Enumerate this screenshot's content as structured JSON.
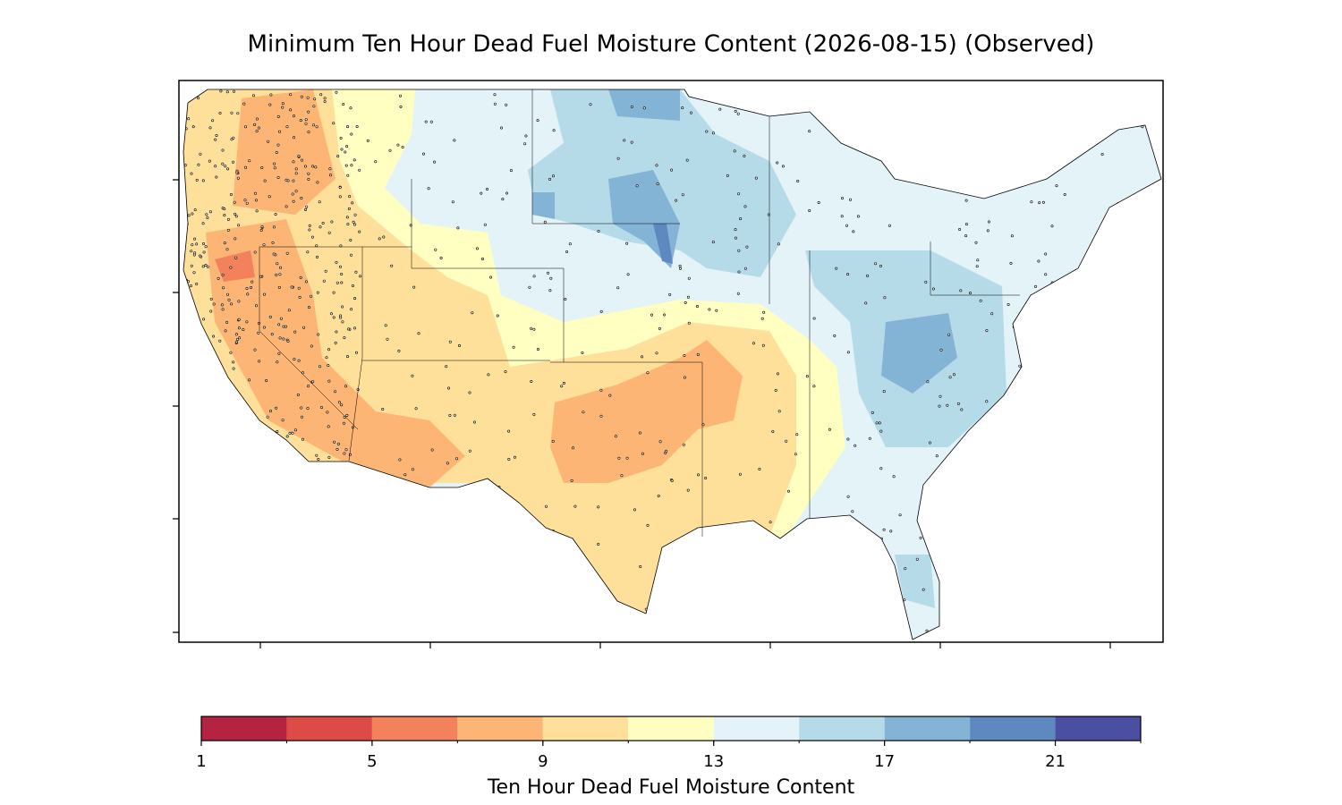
{
  "title": "Minimum Ten Hour Dead Fuel Moisture Content (2026-08-15) (Observed)",
  "colorbar": {
    "label": "Ten Hour Dead Fuel Moisture Content",
    "lim": [
      1,
      23
    ],
    "boundaries": [
      1,
      3,
      5,
      7,
      9,
      11,
      13,
      15,
      17,
      19,
      21,
      23
    ],
    "colors": [
      "#b4233f",
      "#dd4b47",
      "#f3825c",
      "#fcb574",
      "#fee09a",
      "#ffffc1",
      "#e3f3f8",
      "#b5dbe9",
      "#84b4d5",
      "#5e88c0",
      "#4b4fa2"
    ],
    "ticks": [
      1,
      5,
      9,
      13,
      17,
      21
    ]
  }
}
